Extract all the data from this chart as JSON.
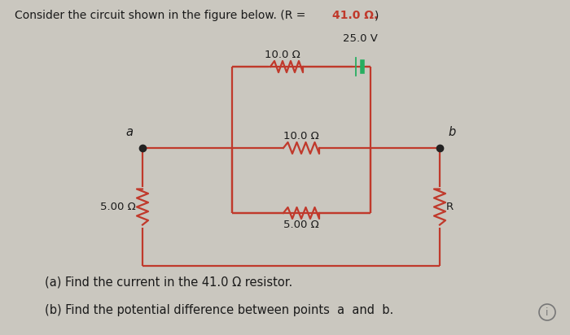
{
  "bg_color": "#cac7bf",
  "wire_color": "#c0392b",
  "battery_color": "#27ae60",
  "text_color": "#1a1a1a",
  "title_prefix": "Consider the circuit shown in the figure below. (R = ",
  "title_highlight": "41.0 Ω.",
  "title_suffix": ")",
  "voltage": "25.0 V",
  "r_top": "10.0 Ω",
  "r_mid": "10.0 Ω",
  "r_bot": "5.00 Ω",
  "r_left": "5.00 Ω",
  "r_right": "R",
  "question_a": "(a) Find the current in the 41.0 Ω resistor.",
  "question_b": "(b) Find the potential difference between points  a  and  b."
}
